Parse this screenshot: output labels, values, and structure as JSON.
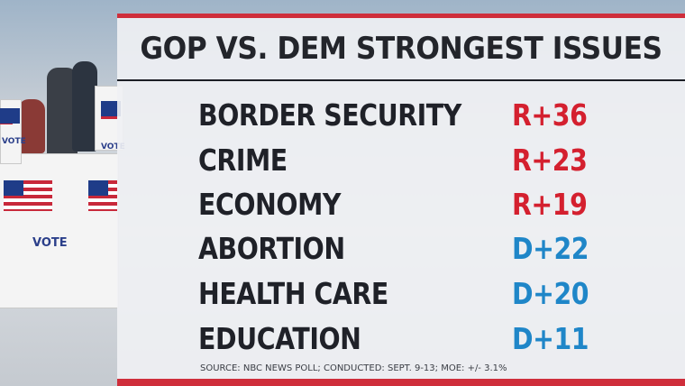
{
  "title": "GOP VS. DEM STRONGEST ISSUES",
  "colors": {
    "republican": "#d4202f",
    "democrat": "#1f86c8",
    "accent_bar": "#cf2e3b"
  },
  "rows": [
    {
      "issue": "BORDER SECURITY",
      "margin": "R+36",
      "party": "R"
    },
    {
      "issue": "CRIME",
      "margin": "R+23",
      "party": "R"
    },
    {
      "issue": "ECONOMY",
      "margin": "R+19",
      "party": "R"
    },
    {
      "issue": "ABORTION",
      "margin": "D+22",
      "party": "D"
    },
    {
      "issue": "HEALTH CARE",
      "margin": "D+20",
      "party": "D"
    },
    {
      "issue": "EDUCATION",
      "margin": "D+11",
      "party": "D"
    }
  ],
  "background": {
    "vote_label": "VOTE"
  },
  "source": "SOURCE: NBC NEWS POLL; CONDUCTED: SEPT. 9-13; MOE: +/- 3.1%"
}
